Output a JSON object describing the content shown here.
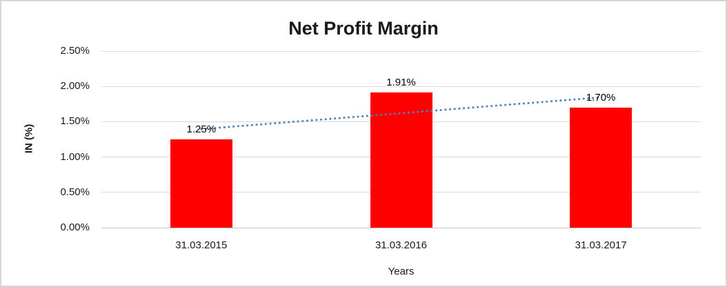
{
  "chart_data": {
    "type": "bar",
    "title": "Net Profit Margin",
    "categories": [
      "31.03.2015",
      "31.03.2016",
      "31.03.2017"
    ],
    "values": [
      1.25,
      1.91,
      1.7
    ],
    "data_labels": [
      "1.25%",
      "1.91%",
      "1.70%"
    ],
    "xlabel": "Years",
    "ylabel": "IN (%)",
    "ylim": [
      0,
      2.5
    ],
    "y_ticks": [
      {
        "value": 0.0,
        "label": "0.00%"
      },
      {
        "value": 0.5,
        "label": "0.50%"
      },
      {
        "value": 1.0,
        "label": "1.00%"
      },
      {
        "value": 1.5,
        "label": "1.50%"
      },
      {
        "value": 2.0,
        "label": "2.00%"
      },
      {
        "value": 2.5,
        "label": "2.50%"
      }
    ],
    "grid": true,
    "legend": "none",
    "bar_color": "#FF0000",
    "gridline_color": "#D9D9D9",
    "axis_line_color": "#C6C6C6",
    "text_color": "#1a1a1a",
    "trendline": {
      "type": "linear",
      "style": "dotted",
      "color": "#4F81BD"
    }
  }
}
